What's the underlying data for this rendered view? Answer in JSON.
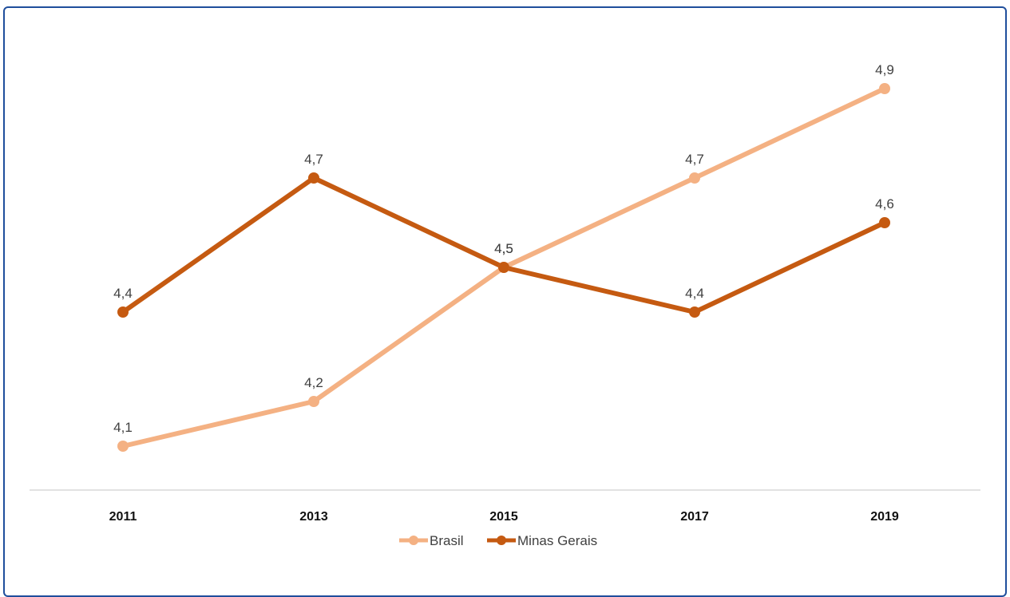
{
  "chart_data": {
    "type": "line",
    "title": "",
    "xlabel": "",
    "ylabel": "",
    "categories": [
      "2011",
      "2013",
      "2015",
      "2017",
      "2019"
    ],
    "series": [
      {
        "name": "Brasil",
        "values": [
          4.1,
          4.2,
          4.5,
          4.7,
          4.9
        ],
        "labels": [
          "4,1",
          "4,2",
          "4,5",
          "4,7",
          "4,9"
        ],
        "color": "#f4b183"
      },
      {
        "name": "Minas Gerais",
        "values": [
          4.4,
          4.7,
          4.5,
          4.4,
          4.6
        ],
        "labels": [
          "4,4",
          "4,7",
          "4,5",
          "4,4",
          "4,6"
        ],
        "color": "#c55a11"
      }
    ],
    "legend_position": "bottom",
    "grid": false,
    "axis_line_color": "#d9d9d9"
  }
}
